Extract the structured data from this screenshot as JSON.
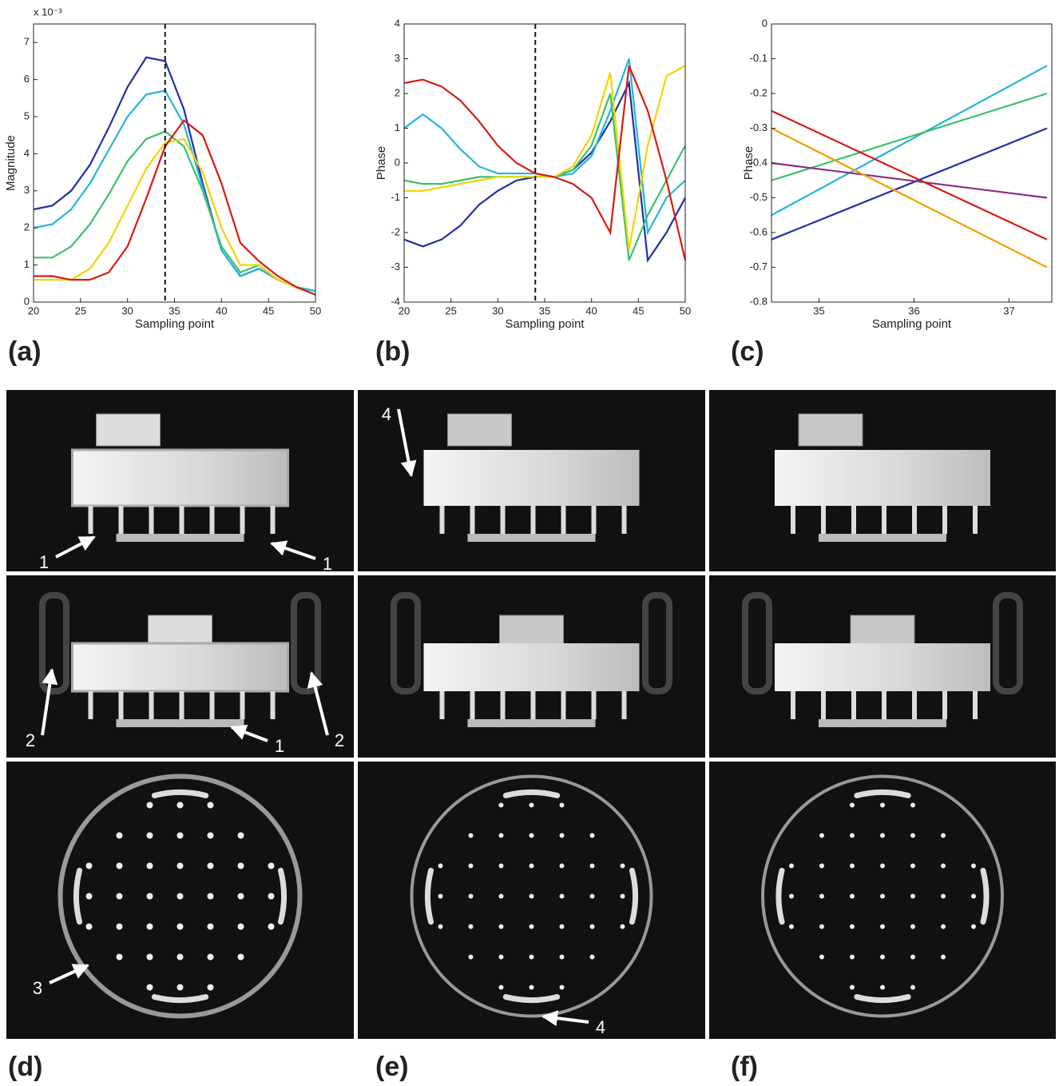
{
  "chart_data": [
    {
      "type": "line",
      "panel_label": "(a)",
      "xlabel": "Sampling point",
      "ylabel": "Magnitude",
      "y_multiplier": "x 10⁻³",
      "xlim": [
        20,
        50
      ],
      "ylim": [
        0,
        7.5
      ],
      "xticks": [
        20,
        25,
        30,
        35,
        40,
        45,
        50
      ],
      "yticks": [
        0,
        1,
        2,
        3,
        4,
        5,
        6,
        7
      ],
      "vline": 34,
      "x": [
        20,
        22,
        24,
        26,
        28,
        30,
        32,
        34,
        36,
        38,
        40,
        42,
        44,
        46,
        48,
        50
      ],
      "series": [
        {
          "color": "#1f2fa8",
          "values": [
            2.5,
            2.6,
            3.0,
            3.7,
            4.7,
            5.8,
            6.6,
            6.5,
            5.2,
            3.2,
            1.4,
            0.7,
            0.9,
            0.6,
            0.4,
            0.3
          ]
        },
        {
          "color": "#22b4e0",
          "values": [
            2.0,
            2.1,
            2.5,
            3.2,
            4.1,
            5.0,
            5.6,
            5.7,
            4.8,
            3.1,
            1.4,
            0.7,
            0.9,
            0.6,
            0.4,
            0.3
          ]
        },
        {
          "color": "#3cc06a",
          "values": [
            1.2,
            1.2,
            1.5,
            2.1,
            2.9,
            3.8,
            4.4,
            4.6,
            4.2,
            3.0,
            1.5,
            0.8,
            1.0,
            0.6,
            0.4,
            0.2
          ]
        },
        {
          "color": "#f0d400",
          "values": [
            0.6,
            0.6,
            0.6,
            0.9,
            1.6,
            2.6,
            3.6,
            4.3,
            4.4,
            3.5,
            2.0,
            1.0,
            1.0,
            0.6,
            0.4,
            0.2
          ]
        },
        {
          "color": "#d81a10",
          "values": [
            0.7,
            0.7,
            0.6,
            0.6,
            0.8,
            1.5,
            2.8,
            4.2,
            4.9,
            4.5,
            3.2,
            1.6,
            1.1,
            0.7,
            0.4,
            0.2
          ]
        }
      ]
    },
    {
      "type": "line",
      "panel_label": "(b)",
      "xlabel": "Sampling point",
      "ylabel": "Phase",
      "xlim": [
        20,
        50
      ],
      "ylim": [
        -4,
        4
      ],
      "xticks": [
        20,
        25,
        30,
        35,
        40,
        45,
        50
      ],
      "yticks": [
        -4,
        -3,
        -2,
        -1,
        0,
        1,
        2,
        3,
        4
      ],
      "vline": 34,
      "x": [
        20,
        22,
        24,
        26,
        28,
        30,
        32,
        34,
        36,
        38,
        40,
        42,
        44,
        46,
        48,
        50
      ],
      "series": [
        {
          "color": "#1f2fa8",
          "values": [
            -2.2,
            -2.4,
            -2.2,
            -1.8,
            -1.2,
            -0.8,
            -0.5,
            -0.4,
            -0.4,
            -0.2,
            0.3,
            1.2,
            2.3,
            -2.8,
            -2.0,
            -1.0
          ]
        },
        {
          "color": "#22b4e0",
          "values": [
            1.0,
            1.4,
            1.0,
            0.4,
            -0.1,
            -0.3,
            -0.3,
            -0.3,
            -0.4,
            -0.3,
            0.2,
            1.5,
            3.0,
            -2.0,
            -1.0,
            -0.5
          ]
        },
        {
          "color": "#3cc06a",
          "values": [
            -0.5,
            -0.6,
            -0.6,
            -0.5,
            -0.4,
            -0.4,
            -0.4,
            -0.4,
            -0.4,
            -0.2,
            0.5,
            2.0,
            -2.8,
            -1.5,
            -0.5,
            0.5
          ]
        },
        {
          "color": "#f0d400",
          "values": [
            -0.8,
            -0.8,
            -0.7,
            -0.6,
            -0.5,
            -0.4,
            -0.4,
            -0.4,
            -0.4,
            -0.1,
            0.8,
            2.6,
            -2.5,
            0.5,
            2.5,
            2.8
          ]
        },
        {
          "color": "#d81a10",
          "values": [
            2.3,
            2.4,
            2.2,
            1.8,
            1.2,
            0.5,
            0.0,
            -0.3,
            -0.4,
            -0.6,
            -1.0,
            -2.0,
            2.8,
            1.5,
            -0.5,
            -2.8
          ]
        }
      ]
    },
    {
      "type": "line",
      "panel_label": "(c)",
      "xlabel": "Sampling point",
      "ylabel": "Phase",
      "xlim": [
        34.5,
        37.45
      ],
      "ylim": [
        -0.8,
        0
      ],
      "xticks": [
        35,
        36,
        37
      ],
      "yticks": [
        -0.8,
        -0.7,
        -0.6,
        -0.5,
        -0.4,
        -0.3,
        -0.2,
        -0.1,
        0
      ],
      "x": [
        34.5,
        37.4
      ],
      "series": [
        {
          "color": "#1f2fa8",
          "values": [
            -0.62,
            -0.3
          ]
        },
        {
          "color": "#22b4e0",
          "values": [
            -0.55,
            -0.12
          ]
        },
        {
          "color": "#3cc06a",
          "values": [
            -0.45,
            -0.2
          ]
        },
        {
          "color": "#8a2a8a",
          "values": [
            -0.4,
            -0.5
          ]
        },
        {
          "color": "#f0a000",
          "values": [
            -0.3,
            -0.7
          ]
        },
        {
          "color": "#d81a10",
          "values": [
            -0.25,
            -0.62
          ]
        }
      ]
    }
  ],
  "images": {
    "panel_labels": [
      "(d)",
      "(e)",
      "(f)"
    ],
    "annotations": [
      "1",
      "1",
      "2",
      "1",
      "2",
      "3",
      "4",
      "4"
    ]
  }
}
